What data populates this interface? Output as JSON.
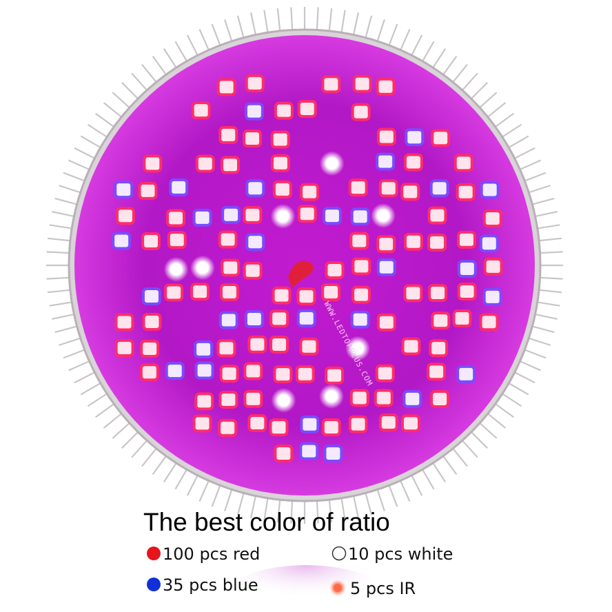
{
  "product": {
    "board_text": "WWW.LEDTOPPLUS.COM",
    "title": "The best color of ratio",
    "legend": [
      {
        "color": "#e8141c",
        "label": "100 pcs red"
      },
      {
        "color": "#ffffff",
        "label": "10  pcs white"
      },
      {
        "color": "#1230d8",
        "label": "35 pcs blue"
      },
      {
        "color": "#ff6a4a",
        "label": "5  pcs IR"
      }
    ]
  }
}
